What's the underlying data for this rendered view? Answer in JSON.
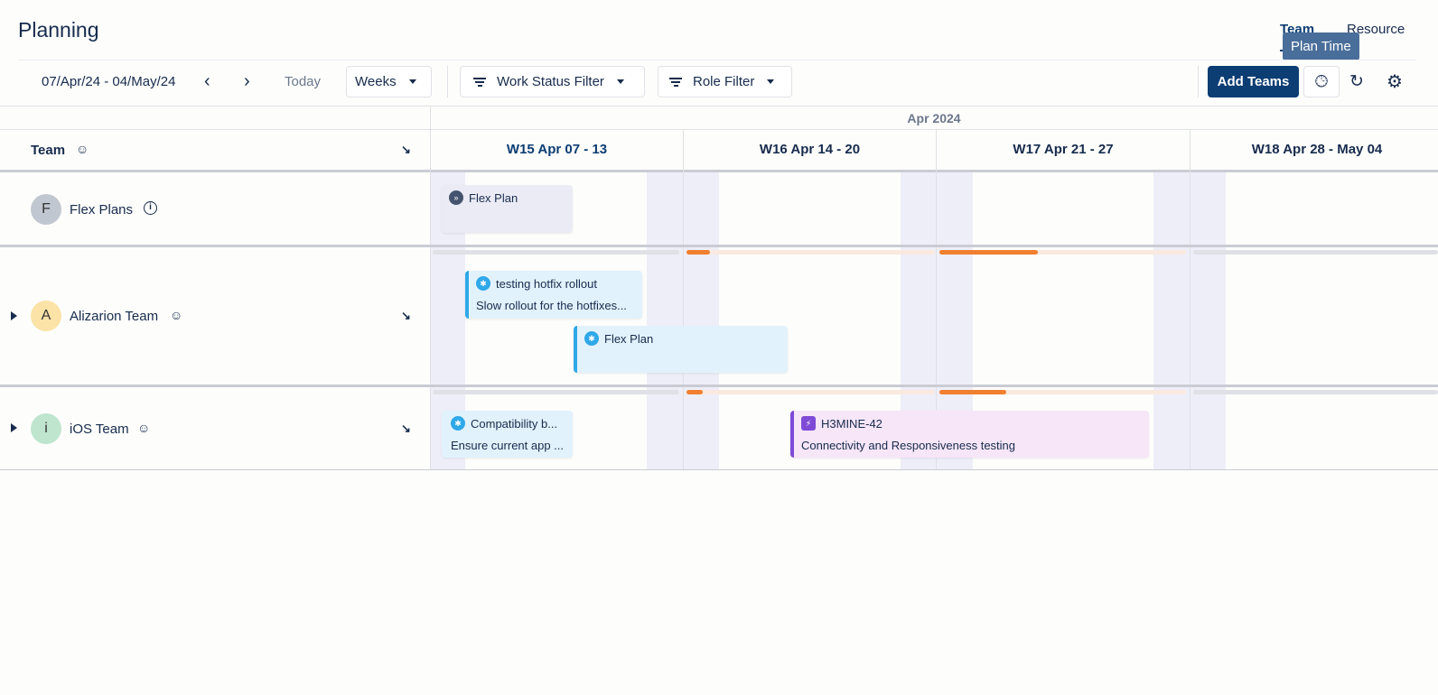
{
  "page_title": "Planning",
  "view_tabs": [
    {
      "label": "Team",
      "active": true
    },
    {
      "label": "Resource",
      "active": false
    }
  ],
  "tooltip": "Plan Time",
  "toolbar": {
    "date_range": "07/Apr/24 - 04/May/24",
    "today": "Today",
    "scale": "Weeks",
    "work_status_filter": "Work Status Filter",
    "role_filter": "Role Filter",
    "add_teams": "Add Teams"
  },
  "timeline": {
    "month": "Apr 2024",
    "weeks": [
      "W15 Apr 07 - 13",
      "W16 Apr 14 - 20",
      "W17 Apr 21 - 27",
      "W18 Apr 28 - May 04"
    ],
    "current_week": 0
  },
  "team_column": {
    "header": "Team"
  },
  "rows": [
    {
      "initial": "F",
      "name": "Flex Plans",
      "avatar_color": "#c1c7d0",
      "cards": [
        {
          "title": "Flex Plan",
          "icon": "flex-plan-icon"
        }
      ]
    },
    {
      "initial": "A",
      "name": "Alizarion Team",
      "avatar_color": "#fbe3a7",
      "cards": [
        {
          "title": "testing hotfix rollout",
          "desc": "Slow rollout for the hotfixes...",
          "icon": "team-icon"
        },
        {
          "title": "Flex Plan",
          "icon": "team-icon"
        }
      ]
    },
    {
      "initial": "i",
      "name": "iOS Team",
      "avatar_color": "#bfe5cf",
      "cards": [
        {
          "title": "Compatibility b...",
          "desc": "Ensure current app ...",
          "icon": "team-icon"
        },
        {
          "title": "H3MINE-42",
          "desc": "Connectivity and Responsiveness testing",
          "icon": "epic-icon"
        }
      ]
    }
  ],
  "colors": {
    "primary": "#0c3d73",
    "accent_blue": "#2fa8e9",
    "orange": "#f07f2f",
    "purple": "#7e4bd6"
  }
}
